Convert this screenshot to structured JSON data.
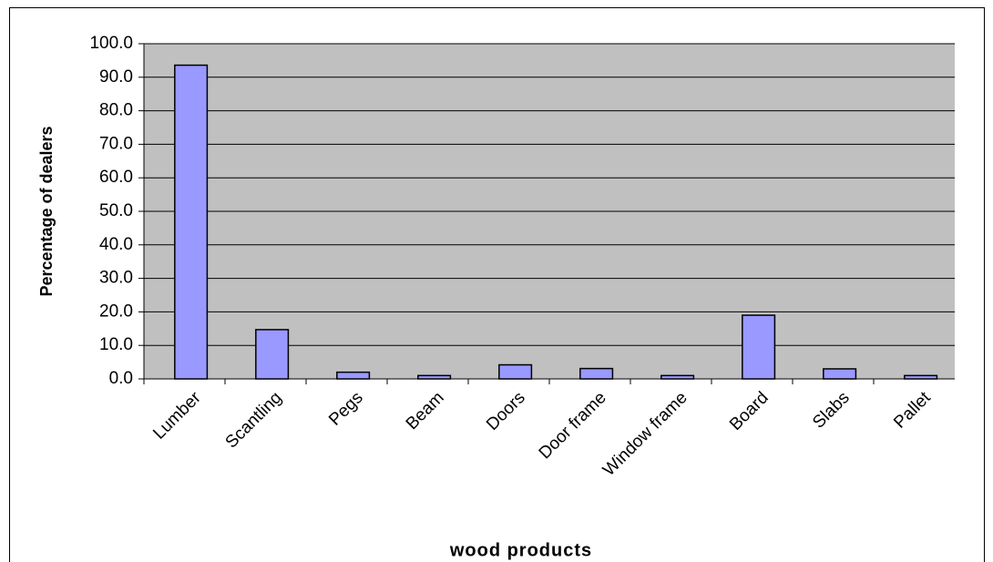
{
  "chart_data": {
    "type": "bar",
    "x_label": "wood products",
    "y_label": "Percentage of dealers",
    "categories": [
      "Lumber",
      "Scantling",
      "Pegs",
      "Beam",
      "Doors",
      "Door frame",
      "Window frame",
      "Board",
      "Slabs",
      "Pallet"
    ],
    "values": [
      93.6,
      14.7,
      2.0,
      1.0,
      4.2,
      3.1,
      1.0,
      19.0,
      3.0,
      1.0
    ],
    "color": "#9999ff",
    "ylim": [
      0,
      100
    ],
    "yticks": [
      {
        "value": 0,
        "label": "0.0"
      },
      {
        "value": 10,
        "label": "10.0"
      },
      {
        "value": 20,
        "label": "20.0"
      },
      {
        "value": 30,
        "label": "30.0"
      },
      {
        "value": 40,
        "label": "40.0"
      },
      {
        "value": 50,
        "label": "50.0"
      },
      {
        "value": 60,
        "label": "60.0"
      },
      {
        "value": 70,
        "label": "70.0"
      },
      {
        "value": 80,
        "label": "80.0"
      },
      {
        "value": 90,
        "label": "90.0"
      },
      {
        "value": 100,
        "label": "100.0"
      }
    ],
    "grid": true
  }
}
